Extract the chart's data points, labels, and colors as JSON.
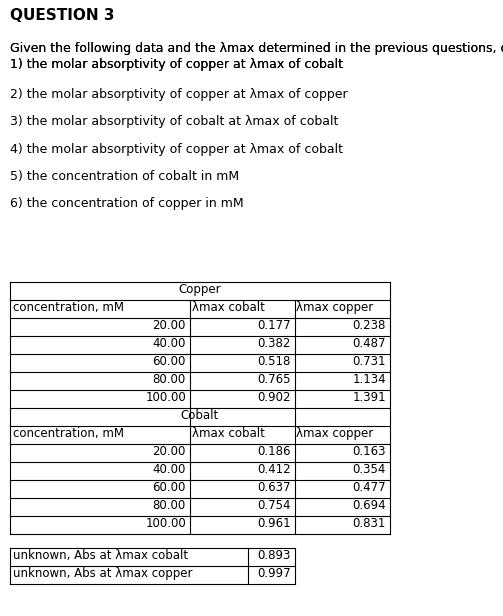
{
  "title": "QUESTION 3",
  "intro_text": "Given the following data and the λmax determined in the previous questions, determine:",
  "questions": [
    "1) the molar absorptivity of copper at λmax of cobalt",
    "2) the molar absorptivity of copper at λmax of copper",
    "3) the molar absorptivity of cobalt at λmax of cobalt",
    "4) the molar absorptivity of copper at λmax of cobalt",
    "5) the concentration of cobalt in mM",
    "6) the concentration of copper in mM"
  ],
  "copper_header": "Copper",
  "copper_col_headers": [
    "concentration, mM",
    "λmax cobalt",
    "λmax copper"
  ],
  "copper_data": [
    [
      20.0,
      0.177,
      0.238
    ],
    [
      40.0,
      0.382,
      0.487
    ],
    [
      60.0,
      0.518,
      0.731
    ],
    [
      80.0,
      0.765,
      1.134
    ],
    [
      100.0,
      0.902,
      1.391
    ]
  ],
  "cobalt_header": "Cobalt",
  "cobalt_col_headers": [
    "concentration, mM",
    "λmax cobalt",
    "λmax copper"
  ],
  "cobalt_data": [
    [
      20.0,
      0.186,
      0.163
    ],
    [
      40.0,
      0.412,
      0.354
    ],
    [
      60.0,
      0.637,
      0.477
    ],
    [
      80.0,
      0.754,
      0.694
    ],
    [
      100.0,
      0.961,
      0.831
    ]
  ],
  "unknown_labels": [
    "unknown, Abs at λmax cobalt",
    "unknown, Abs at λmax copper"
  ],
  "unknown_values": [
    0.893,
    0.997
  ],
  "bg_color": "#ffffff",
  "text_color": "#000000",
  "title_fontsize": 11,
  "body_fontsize": 9,
  "table_fontsize": 8.5
}
